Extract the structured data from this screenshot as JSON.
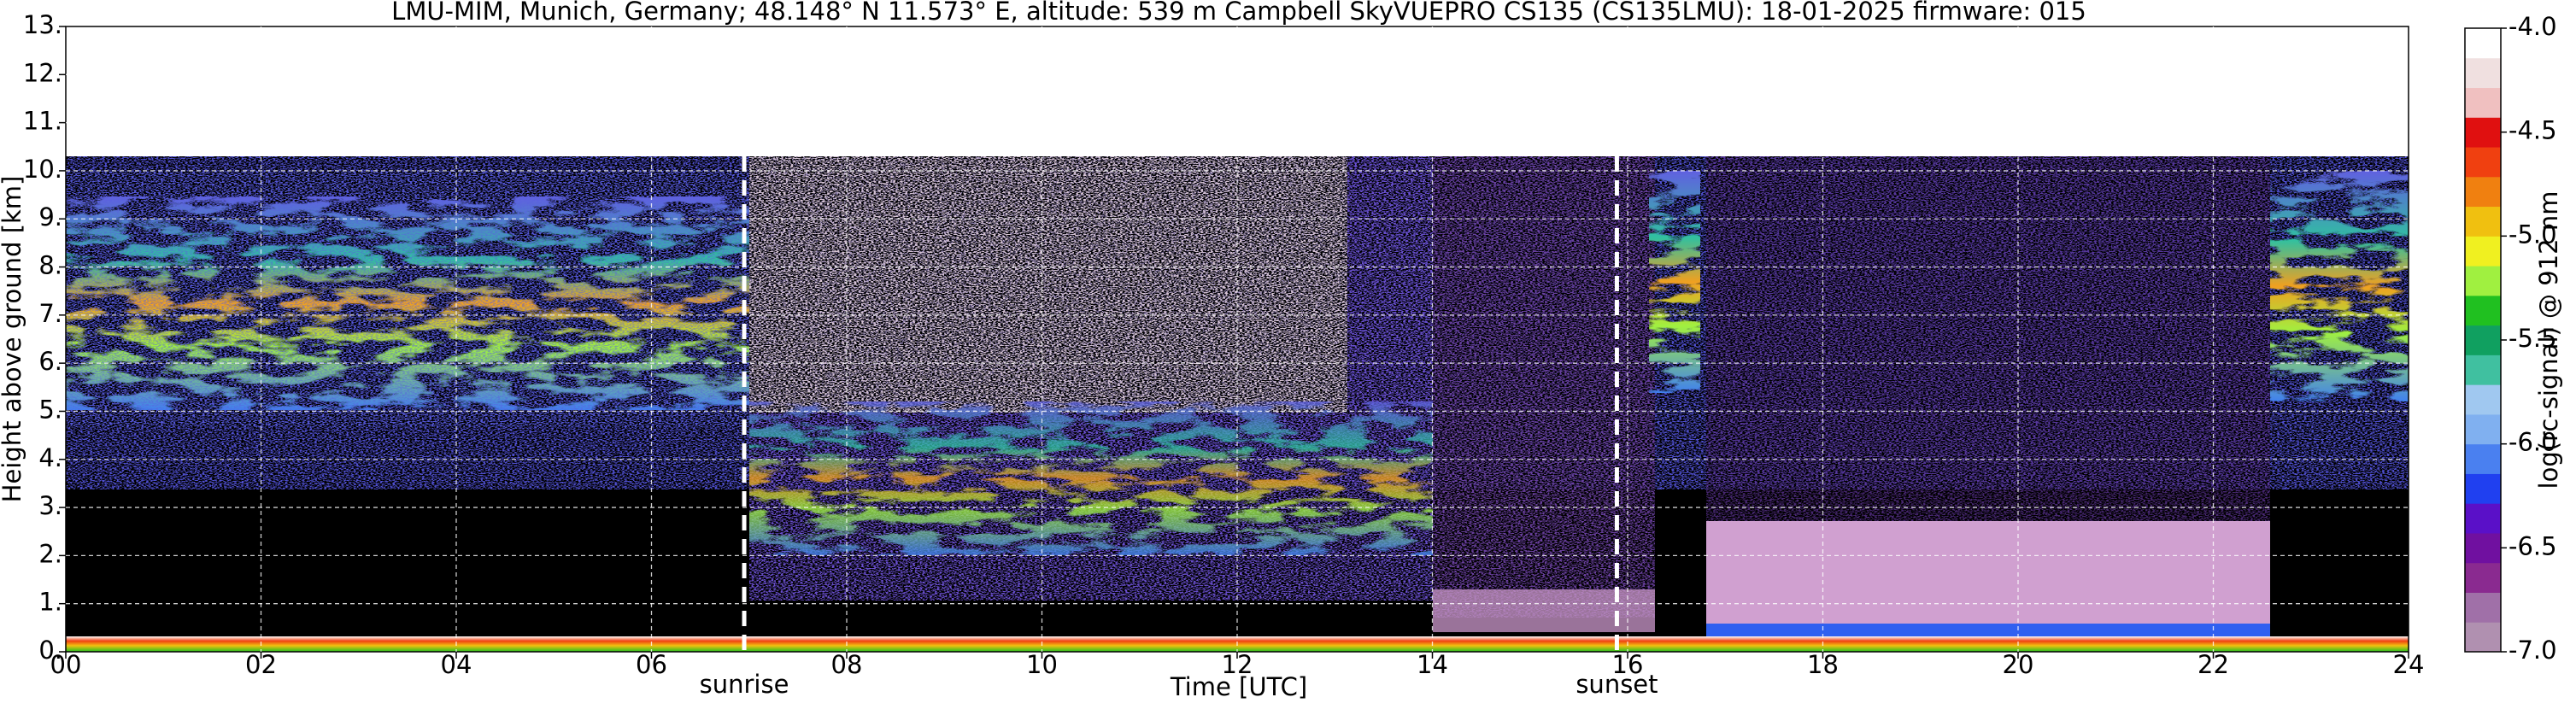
{
  "chart_data": {
    "type": "heatmap",
    "title": "LMU-MIM, Munich, Germany; 48.148° N 11.573° E, altitude: 539 m    Campbell SkyVUEPRO CS135 (CS135LMU): 18-01-2025    firmware: 015",
    "x_label": "Time [UTC]",
    "y_label": "Height above ground [km]",
    "xlim": [
      0,
      24
    ],
    "xticks": [
      {
        "value": 0,
        "label": "00"
      },
      {
        "value": 2,
        "label": "02"
      },
      {
        "value": 4,
        "label": "04"
      },
      {
        "value": 6,
        "label": "06"
      },
      {
        "value": 8,
        "label": "08"
      },
      {
        "value": 10,
        "label": "10"
      },
      {
        "value": 12,
        "label": "12"
      },
      {
        "value": 14,
        "label": "14"
      },
      {
        "value": 16,
        "label": "16"
      },
      {
        "value": 18,
        "label": "18"
      },
      {
        "value": 20,
        "label": "20"
      },
      {
        "value": 22,
        "label": "22"
      },
      {
        "value": 24,
        "label": "24"
      }
    ],
    "ylim": [
      0,
      13
    ],
    "yticks": [
      {
        "value": 0,
        "label": "0."
      },
      {
        "value": 1,
        "label": "1."
      },
      {
        "value": 2,
        "label": "2."
      },
      {
        "value": 3,
        "label": "3."
      },
      {
        "value": 4,
        "label": "4."
      },
      {
        "value": 5,
        "label": "5."
      },
      {
        "value": 6,
        "label": "6."
      },
      {
        "value": 7,
        "label": "7."
      },
      {
        "value": 8,
        "label": "8."
      },
      {
        "value": 9,
        "label": "9."
      },
      {
        "value": 10,
        "label": "10."
      },
      {
        "value": 11,
        "label": "11."
      },
      {
        "value": 12,
        "label": "12."
      },
      {
        "value": 13,
        "label": "13."
      }
    ],
    "grid": true,
    "annotations": [
      {
        "x": 6.95,
        "text": "sunrise"
      },
      {
        "x": 15.89,
        "text": "sunset"
      }
    ],
    "colorbar": {
      "label": "log(rc-signal) @ 912 nm",
      "lim": [
        -7,
        -4
      ],
      "ticks": [
        {
          "value": -7,
          "label": "-7.0"
        },
        {
          "value": -6.5,
          "label": "-6.5"
        },
        {
          "value": -6,
          "label": "-6.0"
        },
        {
          "value": -5.5,
          "label": "-5.5"
        },
        {
          "value": -5,
          "label": "-5.0"
        },
        {
          "value": -4.5,
          "label": "-4.5"
        },
        {
          "value": -4,
          "label": "-4.0"
        }
      ],
      "colors": [
        "#b090b0",
        "#a070a8",
        "#8a2a90",
        "#7010a0",
        "#5a10c8",
        "#2040f0",
        "#4a80f0",
        "#80b0f0",
        "#a0c8f0",
        "#40c0a0",
        "#10a060",
        "#20c020",
        "#a0f040",
        "#f0f020",
        "#f0c010",
        "#f08010",
        "#f04010",
        "#e01010",
        "#f0c0c0",
        "#f0e0e0",
        "#ffffff"
      ]
    }
  }
}
